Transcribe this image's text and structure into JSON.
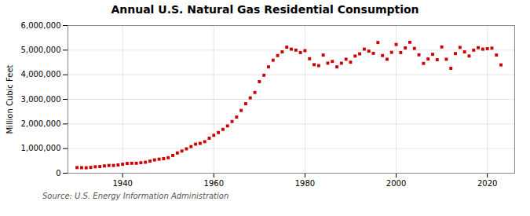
{
  "chart_data": {
    "type": "scatter",
    "title": "Annual U.S. Natural Gas Residential Consumption",
    "ylabel": "Million Cubic Feet",
    "source": "Source: U.S. Energy Information Administration",
    "x": [
      1930,
      1931,
      1932,
      1933,
      1934,
      1935,
      1936,
      1937,
      1938,
      1939,
      1940,
      1941,
      1942,
      1943,
      1944,
      1945,
      1946,
      1947,
      1948,
      1949,
      1950,
      1951,
      1952,
      1953,
      1954,
      1955,
      1956,
      1957,
      1958,
      1959,
      1960,
      1961,
      1962,
      1963,
      1964,
      1965,
      1966,
      1967,
      1968,
      1969,
      1970,
      1971,
      1972,
      1973,
      1974,
      1975,
      1976,
      1977,
      1978,
      1979,
      1980,
      1981,
      1982,
      1983,
      1984,
      1985,
      1986,
      1987,
      1988,
      1989,
      1990,
      1991,
      1992,
      1993,
      1994,
      1995,
      1996,
      1997,
      1998,
      1999,
      2000,
      2001,
      2002,
      2003,
      2004,
      2005,
      2006,
      2007,
      2008,
      2009,
      2010,
      2011,
      2012,
      2013,
      2014,
      2015,
      2016,
      2017,
      2018,
      2019,
      2020,
      2021,
      2022,
      2023
    ],
    "values": [
      230000,
      225000,
      220000,
      235000,
      260000,
      270000,
      295000,
      315000,
      315000,
      335000,
      365000,
      395000,
      405000,
      405000,
      425000,
      445000,
      490000,
      540000,
      570000,
      590000,
      630000,
      720000,
      820000,
      900000,
      990000,
      1080000,
      1180000,
      1210000,
      1280000,
      1420000,
      1540000,
      1650000,
      1780000,
      1920000,
      2100000,
      2280000,
      2550000,
      2820000,
      3060000,
      3280000,
      3720000,
      3980000,
      4320000,
      4590000,
      4780000,
      4930000,
      5120000,
      5040000,
      5000000,
      4900000,
      4980000,
      4650000,
      4410000,
      4370000,
      4800000,
      4470000,
      4540000,
      4320000,
      4470000,
      4630000,
      4510000,
      4760000,
      4850000,
      5040000,
      4960000,
      4870000,
      5310000,
      4780000,
      4630000,
      4910000,
      5230000,
      4900000,
      5090000,
      5320000,
      5070000,
      4810000,
      4460000,
      4640000,
      4830000,
      4610000,
      5130000,
      4630000,
      4260000,
      4860000,
      5110000,
      4930000,
      4760000,
      5000000,
      5100000,
      5040000,
      5060000,
      5080000,
      4800000,
      4400000
    ],
    "color": "#cc0000",
    "marker": "square",
    "xlim": [
      1928,
      2026
    ],
    "ylim": [
      0,
      6000000
    ],
    "xticks": [
      1940,
      1960,
      1980,
      2000,
      2020
    ],
    "yticks": [
      0,
      {
        "value": 1000000,
        "label": "1,000,000"
      },
      {
        "value": 2000000,
        "label": "2,000,000"
      },
      {
        "value": 3000000,
        "label": "3,000,000"
      },
      {
        "value": 4000000,
        "label": "4,000,000"
      },
      {
        "value": 5000000,
        "label": "5,000,000"
      },
      {
        "value": 6000000,
        "label": "6,000,000"
      }
    ],
    "grid": true
  }
}
